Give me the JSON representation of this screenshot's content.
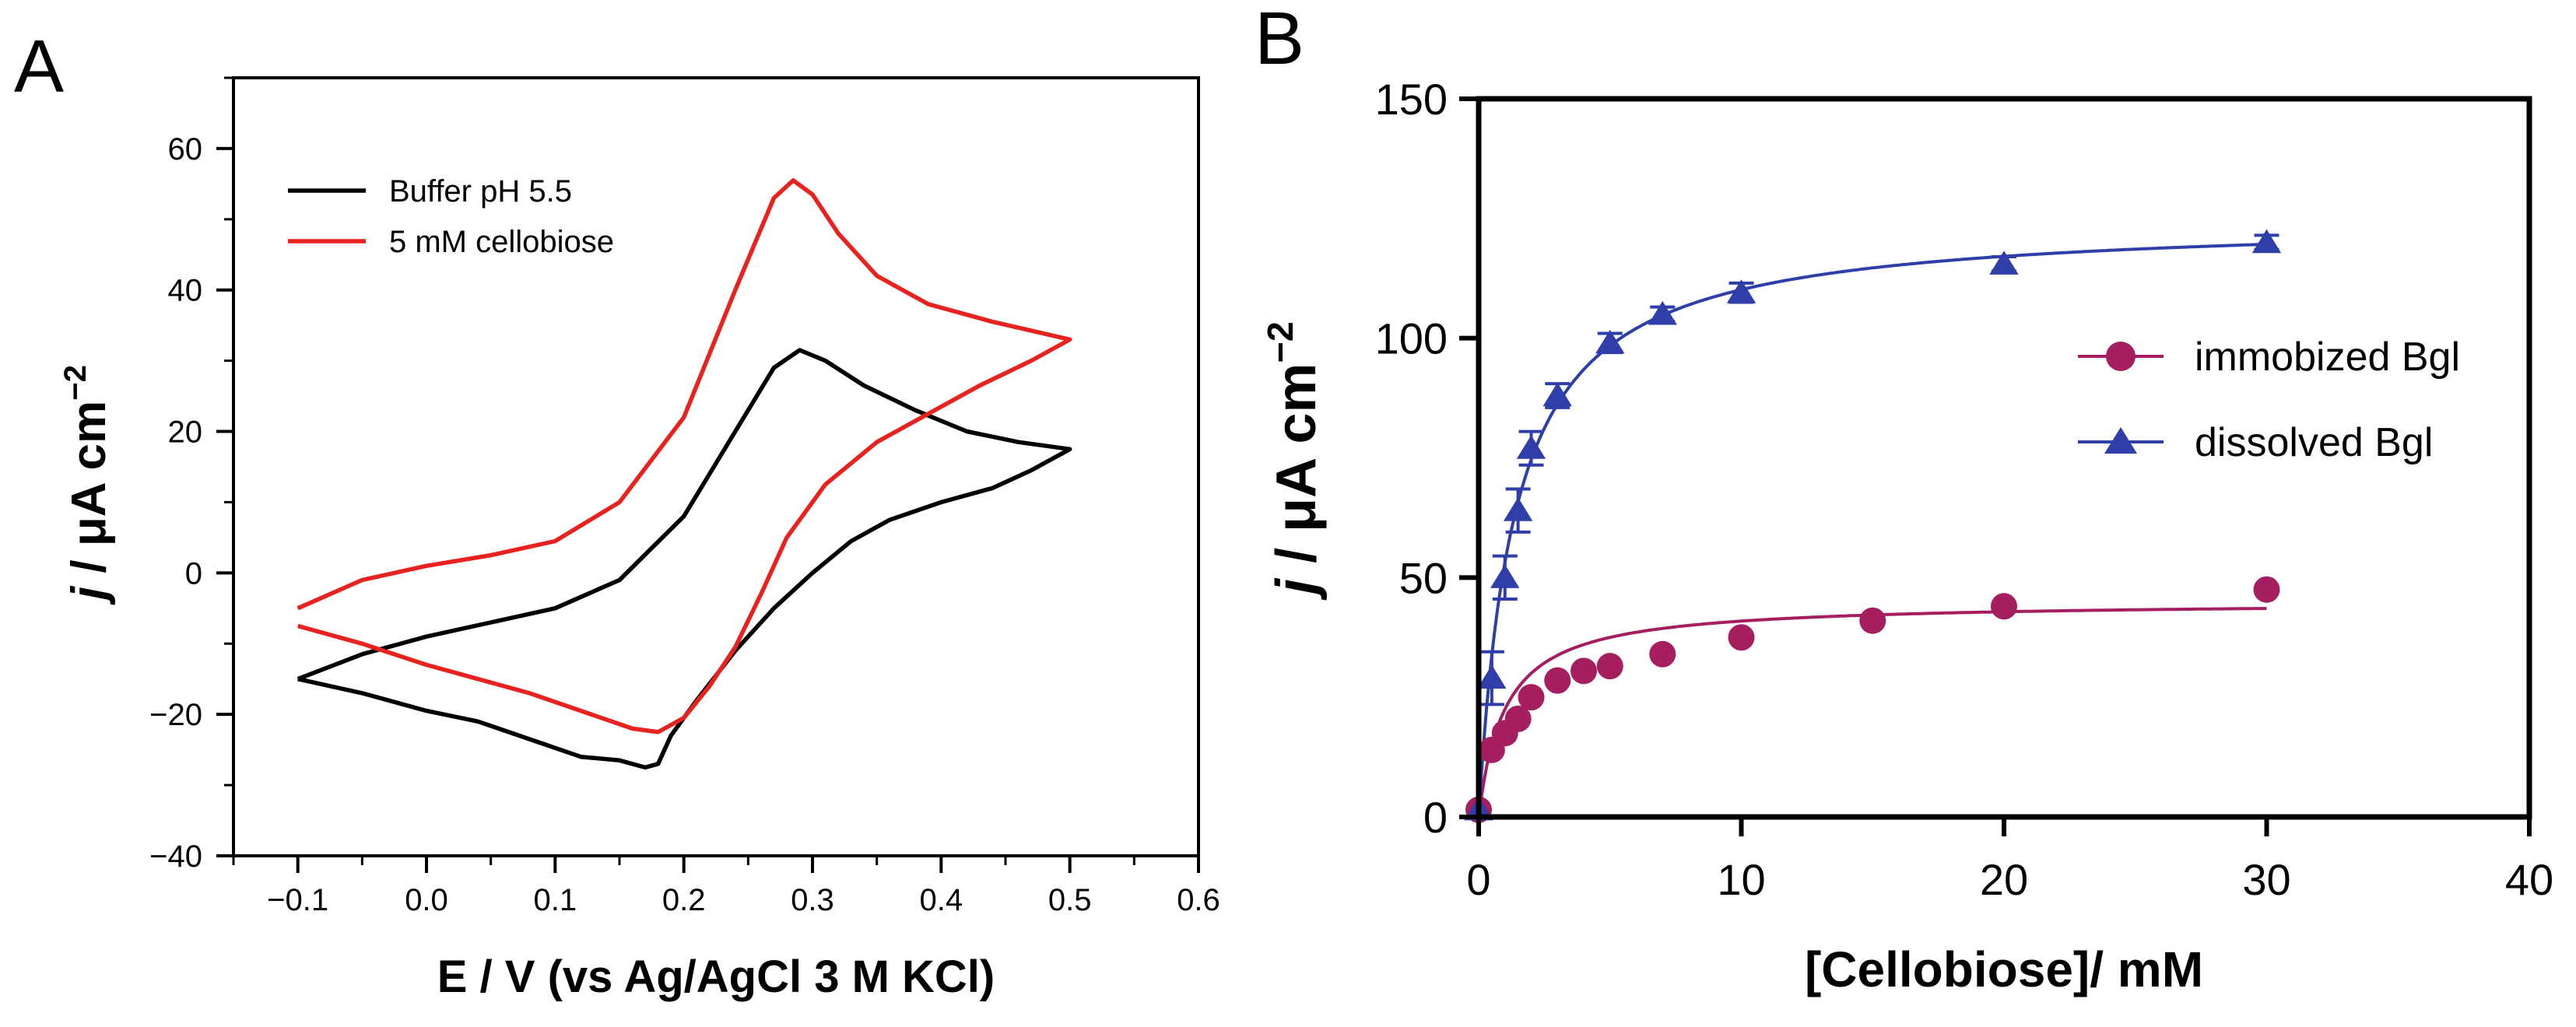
{
  "panels": {
    "a": {
      "label": "A"
    },
    "b": {
      "label": "B"
    }
  },
  "chart_data": [
    {
      "type": "line",
      "panel": "A",
      "xlabel": "E / V (vs Ag/AgCl 3 M KCl)",
      "ylabel_parts": {
        "italic": "j",
        "mid": " / μA cm",
        "sup": "−2"
      },
      "xlim": [
        -0.15,
        0.6
      ],
      "ylim": [
        -40,
        70
      ],
      "xticks": [
        -0.1,
        0.0,
        0.1,
        0.2,
        0.3,
        0.4,
        0.5,
        0.6
      ],
      "xtick_labels": [
        "−0.1",
        "0.0",
        "0.1",
        "0.2",
        "0.3",
        "0.4",
        "0.5",
        "0.6"
      ],
      "yticks": [
        -40,
        -20,
        0,
        20,
        40,
        60
      ],
      "ytick_labels": [
        "−40",
        "−20",
        "0",
        "20",
        "40",
        "60"
      ],
      "legend_position": "top-left",
      "series": [
        {
          "name": "Buffer pH 5.5",
          "color": "#000000",
          "points": [
            [
              -0.1,
              -15.0
            ],
            [
              -0.05,
              -11.5
            ],
            [
              0.0,
              -9.0
            ],
            [
              0.05,
              -7.0
            ],
            [
              0.1,
              -5.0
            ],
            [
              0.15,
              -1.0
            ],
            [
              0.2,
              8.0
            ],
            [
              0.24,
              20.0
            ],
            [
              0.27,
              29.0
            ],
            [
              0.29,
              31.5
            ],
            [
              0.31,
              30.0
            ],
            [
              0.34,
              26.5
            ],
            [
              0.38,
              23.0
            ],
            [
              0.42,
              20.0
            ],
            [
              0.46,
              18.5
            ],
            [
              0.5,
              17.5
            ],
            [
              0.47,
              14.5
            ],
            [
              0.44,
              12.0
            ],
            [
              0.4,
              10.0
            ],
            [
              0.36,
              7.5
            ],
            [
              0.33,
              4.5
            ],
            [
              0.3,
              0.0
            ],
            [
              0.27,
              -5.0
            ],
            [
              0.24,
              -11.0
            ],
            [
              0.21,
              -18.0
            ],
            [
              0.19,
              -23.0
            ],
            [
              0.18,
              -27.0
            ],
            [
              0.17,
              -27.5
            ],
            [
              0.15,
              -26.5
            ],
            [
              0.12,
              -26.0
            ],
            [
              0.08,
              -23.5
            ],
            [
              0.04,
              -21.0
            ],
            [
              0.0,
              -19.5
            ],
            [
              -0.05,
              -17.0
            ],
            [
              -0.1,
              -15.0
            ]
          ]
        },
        {
          "name": "5 mM cellobiose",
          "color": "#e8231f",
          "points": [
            [
              -0.1,
              -5.0
            ],
            [
              -0.05,
              -1.0
            ],
            [
              0.0,
              1.0
            ],
            [
              0.05,
              2.5
            ],
            [
              0.1,
              4.5
            ],
            [
              0.15,
              10.0
            ],
            [
              0.2,
              22.0
            ],
            [
              0.24,
              40.0
            ],
            [
              0.27,
              53.0
            ],
            [
              0.285,
              55.5
            ],
            [
              0.3,
              53.5
            ],
            [
              0.32,
              48.0
            ],
            [
              0.35,
              42.0
            ],
            [
              0.39,
              38.0
            ],
            [
              0.44,
              35.5
            ],
            [
              0.5,
              33.0
            ],
            [
              0.47,
              30.0
            ],
            [
              0.43,
              26.5
            ],
            [
              0.39,
              22.5
            ],
            [
              0.35,
              18.5
            ],
            [
              0.31,
              12.5
            ],
            [
              0.28,
              5.0
            ],
            [
              0.26,
              -3.0
            ],
            [
              0.24,
              -10.5
            ],
            [
              0.22,
              -16.0
            ],
            [
              0.2,
              -20.5
            ],
            [
              0.18,
              -22.5
            ],
            [
              0.16,
              -22.0
            ],
            [
              0.12,
              -19.5
            ],
            [
              0.08,
              -17.0
            ],
            [
              0.04,
              -15.0
            ],
            [
              0.0,
              -13.0
            ],
            [
              -0.05,
              -10.0
            ],
            [
              -0.1,
              -7.5
            ]
          ]
        }
      ]
    },
    {
      "type": "scatter",
      "panel": "B",
      "xlabel": "[Cellobiose]/ mM",
      "ylabel_parts": {
        "italic": "j",
        "mid": " / μA cm",
        "sup": "−2"
      },
      "xlim": [
        0,
        40
      ],
      "ylim": [
        0,
        150
      ],
      "xticks": [
        0,
        10,
        20,
        30,
        40
      ],
      "xtick_labels": [
        "0",
        "10",
        "20",
        "30",
        "40"
      ],
      "yticks": [
        0,
        50,
        100,
        150
      ],
      "ytick_labels": [
        "0",
        "50",
        "100",
        "150"
      ],
      "legend_position": "right",
      "series": [
        {
          "name": "immobized Bgl",
          "color": "#a51e5f",
          "marker": "circle",
          "fit": {
            "model": "michaelis-menten",
            "jmax": 45,
            "km": 1.0
          },
          "x": [
            0,
            0.5,
            1,
            1.5,
            2,
            3,
            4,
            5,
            7,
            10,
            15,
            20,
            30
          ],
          "y": [
            1.5,
            14.0,
            17.5,
            20.5,
            25.0,
            28.5,
            30.5,
            31.5,
            34.0,
            37.5,
            41.0,
            44.0,
            47.5
          ]
        },
        {
          "name": "dissolved Bgl",
          "color": "#2f3ea8",
          "marker": "triangle",
          "fit": {
            "model": "michaelis-menten",
            "jmax": 125,
            "km": 1.35
          },
          "x": [
            0,
            0.5,
            1,
            1.5,
            2,
            3,
            5,
            7,
            10,
            20,
            30
          ],
          "y": [
            1.5,
            29.0,
            50.0,
            64.0,
            77.0,
            88.0,
            99.0,
            105.0,
            109.5,
            115.5,
            120.0
          ],
          "err": [
            0,
            5.5,
            4.5,
            4.5,
            3.5,
            2.5,
            2.0,
            1.5,
            2.0,
            1.5,
            1.5
          ]
        }
      ]
    }
  ]
}
